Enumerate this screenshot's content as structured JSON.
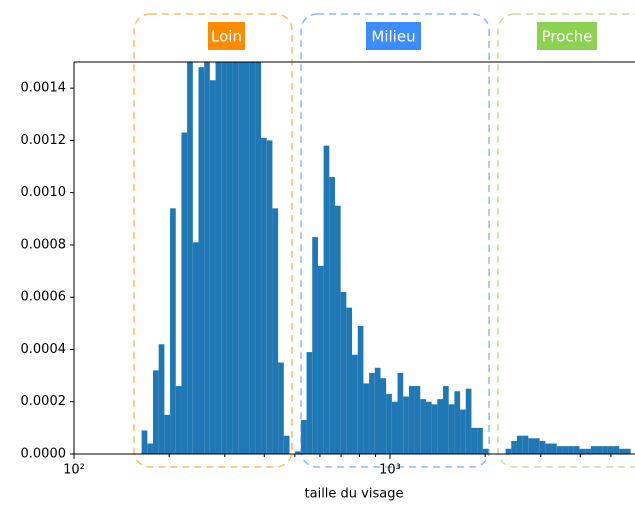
{
  "chart_data": {
    "type": "histogram",
    "xlabel": "taille du visage",
    "xscale": "log",
    "color": "#1f77b4",
    "xlim": [
      100,
      5960
    ],
    "ylim": [
      0,
      0.0015
    ],
    "xticks": [
      {
        "value": 100,
        "label": "10²"
      },
      {
        "value": 1000,
        "label": "10³"
      }
    ],
    "xminorticks": [
      200,
      300,
      400,
      500,
      600,
      700,
      800,
      900,
      2000,
      3000,
      4000,
      5000
    ],
    "yticks": [
      {
        "value": 0,
        "label": "0.0000"
      },
      {
        "value": 0.0002,
        "label": "0.0002"
      },
      {
        "value": 0.0004,
        "label": "0.0004"
      },
      {
        "value": 0.0006,
        "label": "0.0006"
      },
      {
        "value": 0.0008,
        "label": "0.0008"
      },
      {
        "value": 0.001,
        "label": "0.0010"
      },
      {
        "value": 0.0012,
        "label": "0.0012"
      },
      {
        "value": 0.0014,
        "label": "0.0014"
      }
    ],
    "bins": [
      163.7,
      170.6,
      177.8,
      185.3,
      193.2,
      201.4,
      209.9,
      218.8,
      228.0,
      237.7,
      247.7,
      258.2,
      269.1,
      280.5,
      292.4,
      304.7,
      317.6,
      331.1,
      345.1,
      359.7,
      374.9,
      390.8,
      407.3,
      424.5,
      442.5,
      461.2,
      480.7,
      501.1,
      522.3,
      544.4,
      567.4,
      591.4,
      616.4,
      642.5,
      669.7,
      698.0,
      727.5,
      758.3,
      790.4,
      823.8,
      858.7,
      895.0,
      932.9,
      972.3,
      1013.4,
      1056.3,
      1101.0,
      1147.6,
      1196.1,
      1246.7,
      1299.4,
      1354.4,
      1411.7,
      1471.4,
      1533.6,
      1598.5,
      1666.1,
      1736.6,
      1810.0,
      1886.6,
      1966.4,
      2049.6,
      2136.3,
      2226.6,
      2320.8,
      2419.0,
      2521.3,
      2628.0,
      2739.1,
      2855.0,
      2975.8,
      3101.6,
      3232.8,
      3369.6,
      3512.1,
      3660.7,
      3815.5,
      3976.9,
      4145.1,
      4320.5,
      4503.2,
      4693.7,
      4892.2,
      5099.2,
      5314.9,
      5539.7,
      5774.0
    ],
    "values": [
      9e-05,
      4e-05,
      0.00032,
      0.00042,
      0.00015,
      0.00094,
      0.00026,
      0.00123,
      0.0016,
      0.00081,
      0.00148,
      0.0016,
      0.00143,
      0.00152,
      0.00155,
      0.0016,
      0.0016,
      0.00155,
      0.00153,
      0.0016,
      0.00151,
      0.00121,
      0.0012,
      0.00094,
      0.00035,
      7e-05,
      0,
      1e-05,
      0.00013,
      0.00039,
      0.00083,
      0.00072,
      0.00118,
      0.00106,
      0.00095,
      0.00062,
      0.00056,
      0.00038,
      0.00049,
      0.00027,
      0.00031,
      0.00033,
      0.00029,
      0.00023,
      0.0002,
      0.00031,
      0.00022,
      0.00026,
      0.00026,
      0.00021,
      0.0002,
      0.00019,
      0.00021,
      0.00026,
      0.00019,
      0.00024,
      0.00017,
      0.00025,
      0.0001,
      0.0001,
      2e-05,
      0,
      0,
      0,
      2e-05,
      5e-05,
      7e-05,
      7e-05,
      6e-05,
      6e-05,
      5e-05,
      4e-05,
      4e-05,
      3e-05,
      3e-05,
      3e-05,
      3e-05,
      2e-05,
      2e-05,
      3e-05,
      3e-05,
      3e-05,
      3e-05,
      3e-05,
      2e-05,
      2e-05
    ],
    "annotations": [
      {
        "text": "Loin",
        "color": "#ff8c00"
      },
      {
        "text": "Milieu",
        "color": "#3c8cff"
      },
      {
        "text": "Proche",
        "color": "#8cd250"
      }
    ]
  }
}
